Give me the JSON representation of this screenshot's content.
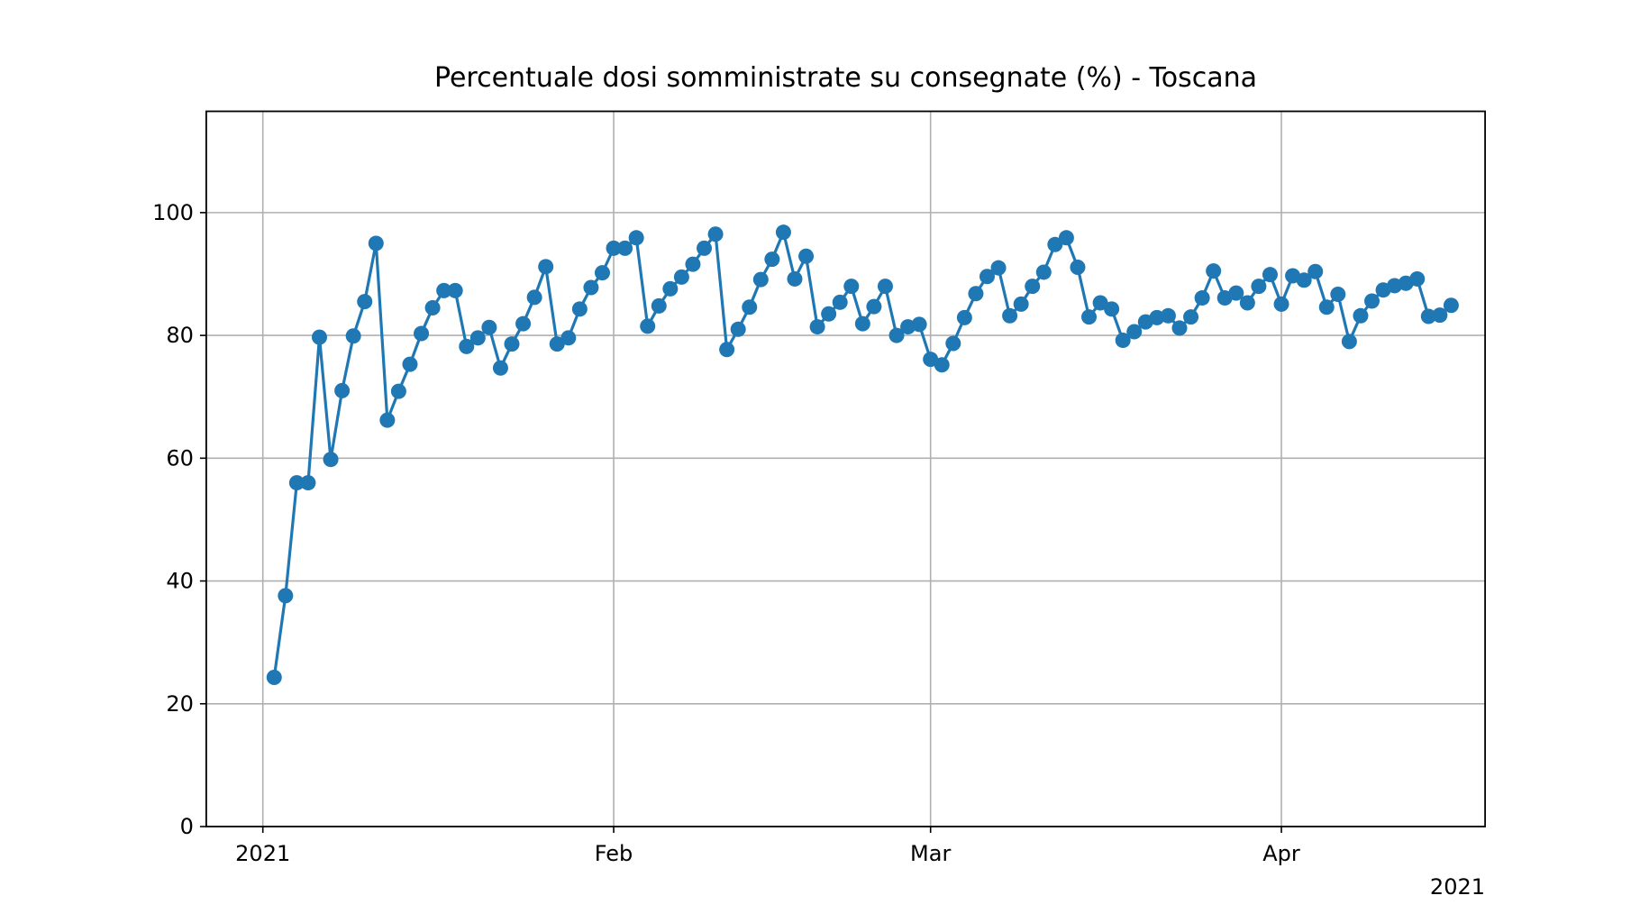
{
  "chart_data": {
    "type": "line",
    "title": "Percentuale dosi somministrate su consegnate (%) - Toscana",
    "xlabel": "",
    "ylabel": "",
    "x_start": "2021-01-02",
    "x_step_days": 1,
    "xlim": [
      "2020-12-27",
      "2021-04-19"
    ],
    "ylim": [
      0,
      116.5
    ],
    "yticks": [
      0,
      20,
      40,
      60,
      80,
      100
    ],
    "xticks": [
      {
        "date": "2021-01-01",
        "label": "2021"
      },
      {
        "date": "2021-02-01",
        "label": "Feb"
      },
      {
        "date": "2021-03-01",
        "label": "Mar"
      },
      {
        "date": "2021-04-01",
        "label": "Apr"
      }
    ],
    "x_offset_label": "2021",
    "grid": true,
    "series": [
      {
        "name": "",
        "color": "#1f77b4",
        "marker": "circle",
        "values": [
          24.3,
          37.6,
          56.0,
          56.0,
          79.7,
          59.8,
          71.0,
          79.9,
          85.5,
          95.0,
          66.2,
          70.9,
          75.3,
          80.3,
          84.5,
          87.3,
          87.3,
          78.2,
          79.6,
          81.3,
          74.7,
          78.6,
          81.9,
          86.2,
          91.2,
          78.6,
          79.6,
          84.3,
          87.8,
          90.2,
          94.2,
          94.2,
          95.9,
          81.5,
          84.8,
          87.6,
          89.5,
          91.6,
          94.2,
          96.5,
          77.7,
          81.0,
          84.6,
          89.1,
          92.4,
          96.8,
          89.2,
          92.9,
          81.4,
          83.5,
          85.4,
          88.0,
          81.9,
          84.7,
          88.0,
          80.0,
          81.4,
          81.8,
          76.1,
          75.2,
          78.7,
          82.9,
          86.8,
          89.6,
          91.0,
          83.2,
          85.1,
          88.0,
          90.3,
          94.8,
          95.9,
          91.1,
          83.0,
          85.3,
          84.3,
          79.2,
          80.6,
          82.2,
          82.9,
          83.2,
          81.2,
          83.0,
          86.1,
          90.5,
          86.1,
          86.9,
          85.3,
          88.0,
          89.9,
          85.1,
          89.7,
          89.0,
          90.4,
          84.6,
          86.7,
          79.0,
          83.2,
          85.6,
          87.4,
          88.1,
          88.5,
          89.2,
          83.1,
          83.3,
          84.9
        ]
      }
    ]
  }
}
